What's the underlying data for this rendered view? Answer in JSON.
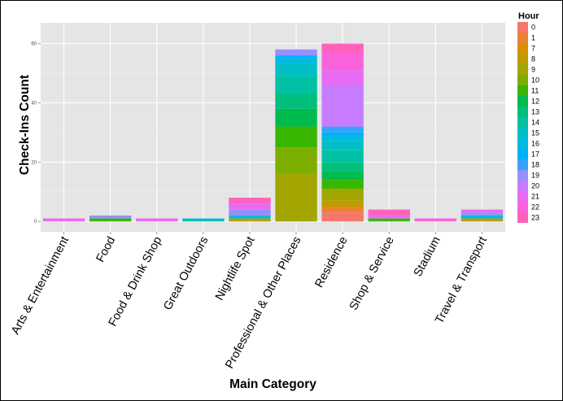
{
  "chart_data": {
    "type": "bar",
    "stacked": true,
    "xlabel": "Main Category",
    "ylabel": "Check-Ins Count",
    "ylim": [
      -3.5,
      67
    ],
    "y_ticks": [
      0,
      20,
      40,
      60
    ],
    "grid": true,
    "legend_position": "right",
    "legend_title": "Hour",
    "hours": [
      "0",
      "1",
      "7",
      "8",
      "9",
      "10",
      "11",
      "12",
      "13",
      "14",
      "15",
      "16",
      "17",
      "18",
      "19",
      "20",
      "21",
      "22",
      "23"
    ],
    "hour_colors": [
      "#F8766D",
      "#EA8331",
      "#D89000",
      "#C09B00",
      "#A3A500",
      "#7CAE00",
      "#39B600",
      "#00BB4E",
      "#00BF7D",
      "#00C1A3",
      "#00BFC4",
      "#00BAE0",
      "#00B0F6",
      "#35A2FF",
      "#9590FF",
      "#C77CFF",
      "#E76BF3",
      "#FA62DB",
      "#FF62BC"
    ],
    "categories": [
      "Arts & Entertainment",
      "Food",
      "Food & Drink Shop",
      "Great Outdoors",
      "Nightlife Spot",
      "Professional & Other Places",
      "Residence",
      "Shop & Service",
      "Stadium",
      "Travel & Transport"
    ],
    "stacks": [
      [
        {
          "hour": "21",
          "count": 1
        }
      ],
      [
        {
          "hour": "11",
          "count": 1
        },
        {
          "hour": "19",
          "count": 1
        }
      ],
      [
        {
          "hour": "21",
          "count": 1
        }
      ],
      [
        {
          "hour": "15",
          "count": 1
        }
      ],
      [
        {
          "hour": "8",
          "count": 1
        },
        {
          "hour": "16",
          "count": 1
        },
        {
          "hour": "19",
          "count": 2
        },
        {
          "hour": "21",
          "count": 2
        },
        {
          "hour": "23",
          "count": 2
        }
      ],
      [
        {
          "hour": "9",
          "count": 16
        },
        {
          "hour": "10",
          "count": 9
        },
        {
          "hour": "11",
          "count": 7
        },
        {
          "hour": "12",
          "count": 6
        },
        {
          "hour": "13",
          "count": 5
        },
        {
          "hour": "14",
          "count": 6
        },
        {
          "hour": "15",
          "count": 4
        },
        {
          "hour": "16",
          "count": 2
        },
        {
          "hour": "17",
          "count": 1
        },
        {
          "hour": "19",
          "count": 2
        }
      ],
      [
        {
          "hour": "0",
          "count": 3
        },
        {
          "hour": "1",
          "count": 2
        },
        {
          "hour": "8",
          "count": 2
        },
        {
          "hour": "9",
          "count": 4
        },
        {
          "hour": "11",
          "count": 3
        },
        {
          "hour": "12",
          "count": 3
        },
        {
          "hour": "13",
          "count": 3
        },
        {
          "hour": "14",
          "count": 4
        },
        {
          "hour": "15",
          "count": 3
        },
        {
          "hour": "16",
          "count": 2
        },
        {
          "hour": "17",
          "count": 1
        },
        {
          "hour": "18",
          "count": 2
        },
        {
          "hour": "20",
          "count": 14
        },
        {
          "hour": "21",
          "count": 5
        },
        {
          "hour": "22",
          "count": 6
        },
        {
          "hour": "23",
          "count": 3
        }
      ],
      [
        {
          "hour": "11",
          "count": 1
        },
        {
          "hour": "21",
          "count": 1
        },
        {
          "hour": "23",
          "count": 2
        }
      ],
      [
        {
          "hour": "22",
          "count": 1
        }
      ],
      [
        {
          "hour": "8",
          "count": 1
        },
        {
          "hour": "16",
          "count": 1
        },
        {
          "hour": "19",
          "count": 1
        },
        {
          "hour": "21",
          "count": 1
        }
      ]
    ]
  }
}
